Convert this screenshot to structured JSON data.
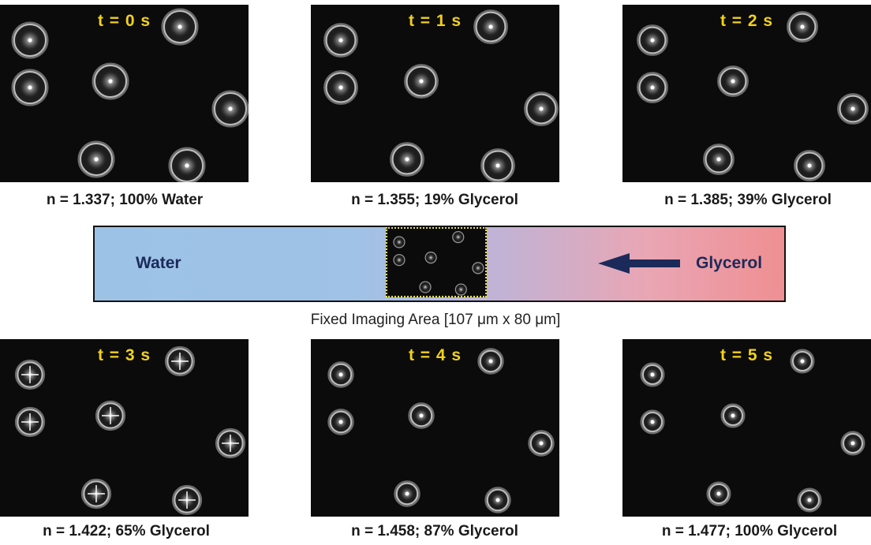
{
  "panels": [
    {
      "time": "t = 0 s",
      "caption": "n = 1.337; 100% Water"
    },
    {
      "time": "t = 1 s",
      "caption": "n = 1.355; 19% Glycerol"
    },
    {
      "time": "t = 2 s",
      "caption": "n = 1.385; 39% Glycerol"
    },
    {
      "time": "t = 3 s",
      "caption": "n = 1.422; 65% Glycerol"
    },
    {
      "time": "t = 4 s",
      "caption": "n = 1.458; 87% Glycerol"
    },
    {
      "time": "t = 5 s",
      "caption": "n = 1.477; 100% Glycerol"
    }
  ],
  "flow_bar": {
    "left_label": "Water",
    "right_label": "Glycerol",
    "fixed_area_caption": "Fixed Imaging Area [107 μm x 80 μm]"
  },
  "colors": {
    "time_label": "#f2d21b",
    "water": "#9cc3e6",
    "glycerol": "#ef8f92",
    "arrow": "#1b2a5a"
  }
}
